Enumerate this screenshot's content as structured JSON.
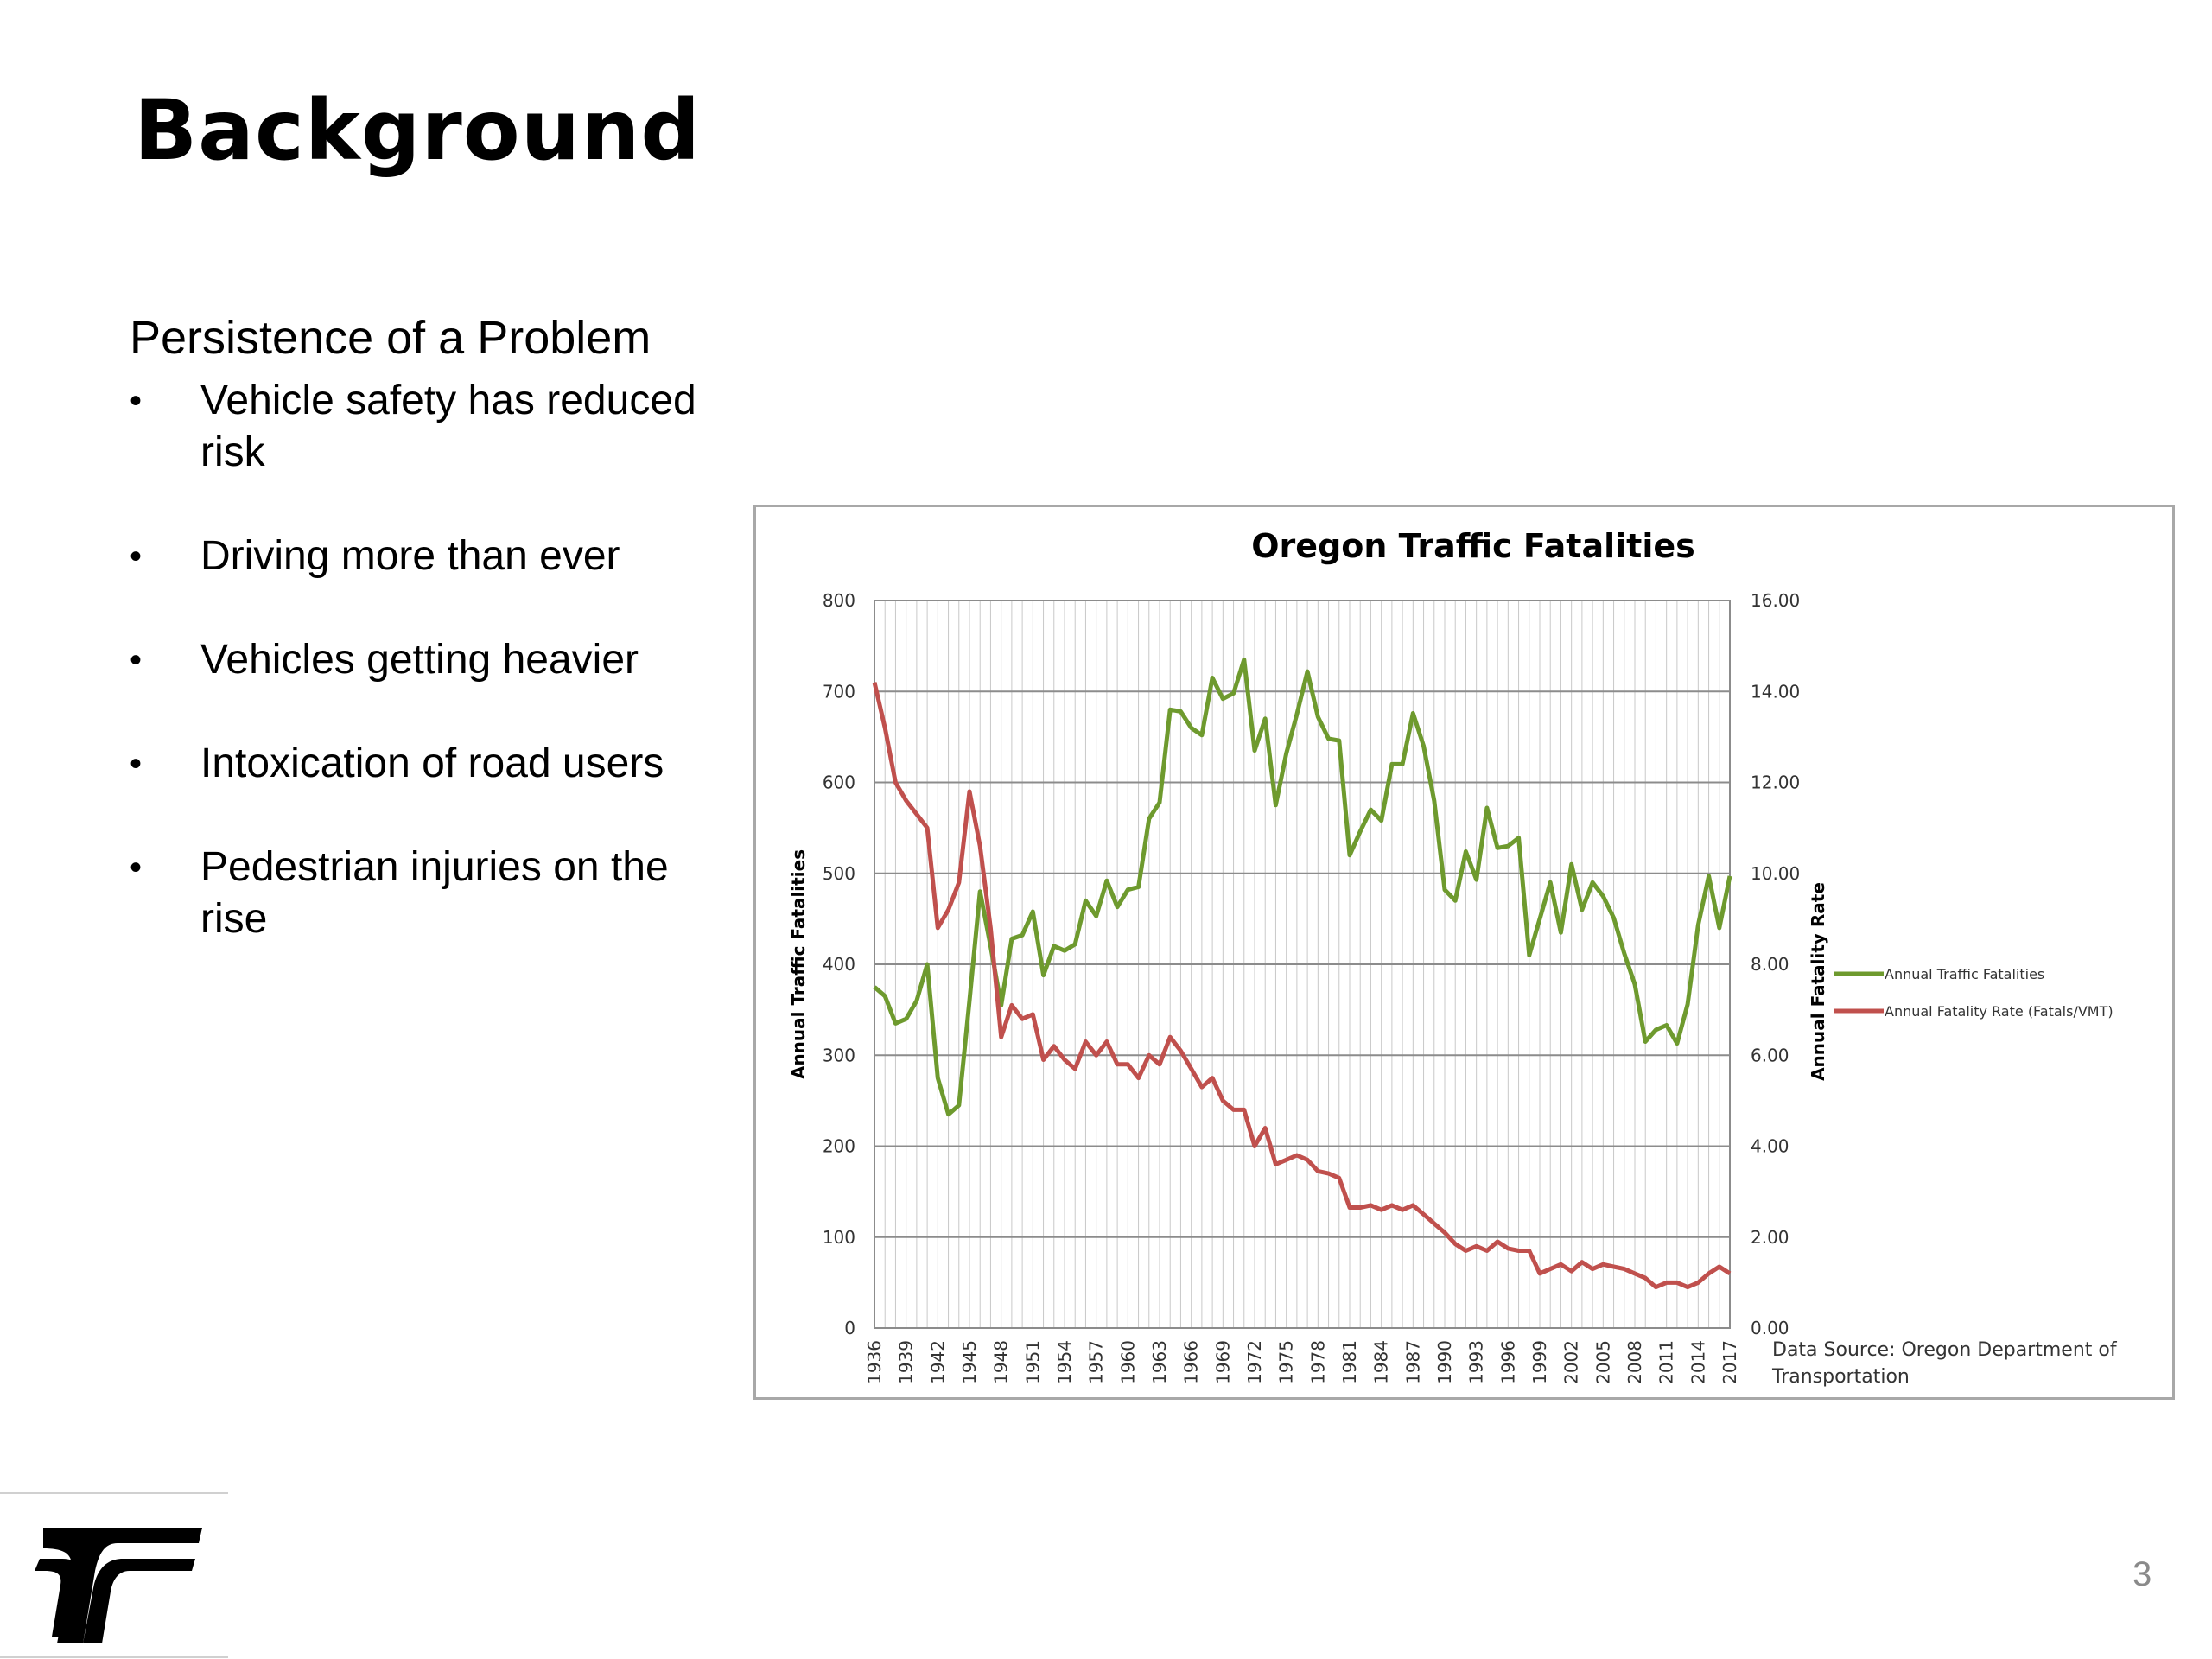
{
  "slide": {
    "title": "Background",
    "subtitle": "Persistence of a Problem",
    "bullets": [
      "Vehicle safety has reduced risk",
      "Driving more than ever",
      "Vehicles getting heavier",
      "Intoxication of road users",
      "Pedestrian injuries on the rise"
    ],
    "page_number": "3",
    "bullet_glyph": "•",
    "logo_icon": "odot-logo-icon"
  },
  "chart_data": {
    "type": "line",
    "title": "Oregon Traffic Fatalities",
    "ylabel": "Annual Traffic Fatalities",
    "y2label": "Annual Fatality Rate",
    "ylim": [
      0,
      800
    ],
    "y2lim": [
      0,
      16
    ],
    "y_ticks": [
      "0",
      "100",
      "200",
      "300",
      "400",
      "500",
      "600",
      "700",
      "800"
    ],
    "y2_ticks": [
      "0.00",
      "2.00",
      "4.00",
      "6.00",
      "8.00",
      "10.00",
      "12.00",
      "14.00",
      "16.00"
    ],
    "x_ticks": [
      "1936",
      "1939",
      "1942",
      "1945",
      "1948",
      "1951",
      "1954",
      "1957",
      "1960",
      "1963",
      "1966",
      "1969",
      "1972",
      "1975",
      "1978",
      "1981",
      "1984",
      "1987",
      "1990",
      "1993",
      "1996",
      "1999",
      "2002",
      "2005",
      "2008",
      "2011",
      "2014",
      "2017"
    ],
    "x": [
      1936,
      1937,
      1938,
      1939,
      1940,
      1941,
      1942,
      1943,
      1944,
      1945,
      1946,
      1947,
      1948,
      1949,
      1950,
      1951,
      1952,
      1953,
      1954,
      1955,
      1956,
      1957,
      1958,
      1959,
      1960,
      1961,
      1962,
      1963,
      1964,
      1965,
      1966,
      1967,
      1968,
      1969,
      1970,
      1971,
      1972,
      1973,
      1974,
      1975,
      1976,
      1977,
      1978,
      1979,
      1980,
      1981,
      1982,
      1983,
      1984,
      1985,
      1986,
      1987,
      1988,
      1989,
      1990,
      1991,
      1992,
      1993,
      1994,
      1995,
      1996,
      1997,
      1998,
      1999,
      2000,
      2001,
      2002,
      2003,
      2004,
      2005,
      2006,
      2007,
      2008,
      2009,
      2010,
      2011,
      2012,
      2013,
      2014,
      2015,
      2016,
      2017
    ],
    "grid": "vertical and horizontal",
    "legend_position": "right",
    "source_note": "Data Source: Oregon Department of Transportation",
    "series": [
      {
        "name": "Annual Traffic Fatalities",
        "axis": "left",
        "color": "#6e9a2e",
        "values": [
          375,
          365,
          335,
          340,
          360,
          400,
          275,
          235,
          245,
          360,
          480,
          420,
          355,
          428,
          432,
          458,
          388,
          420,
          415,
          422,
          470,
          453,
          492,
          463,
          482,
          485,
          560,
          578,
          680,
          678,
          660,
          652,
          715,
          692,
          698,
          735,
          635,
          670,
          575,
          632,
          675,
          722,
          672,
          648,
          646,
          520,
          546,
          570,
          558,
          620,
          620,
          676,
          640,
          580,
          482,
          470,
          524,
          493,
          572,
          528,
          530,
          539,
          410,
          450,
          490,
          435,
          510,
          460,
          490,
          475,
          451,
          412,
          378,
          315,
          328,
          333,
          313,
          356,
          443,
          497,
          440,
          497
        ],
        "value_range": [
          0,
          800
        ]
      },
      {
        "name": "Annual Fatality Rate (Fatals/VMT)",
        "axis": "right",
        "color": "#c0504d",
        "values": [
          14.2,
          13.2,
          12.0,
          11.6,
          11.3,
          11.0,
          8.8,
          9.2,
          9.8,
          11.8,
          10.6,
          8.8,
          6.4,
          7.1,
          6.8,
          6.9,
          5.9,
          6.2,
          5.9,
          5.7,
          6.3,
          6.0,
          6.3,
          5.8,
          5.8,
          5.5,
          6.0,
          5.8,
          6.4,
          6.1,
          5.7,
          5.3,
          5.5,
          5.0,
          4.8,
          4.8,
          4.0,
          4.4,
          3.6,
          3.7,
          3.8,
          3.7,
          3.45,
          3.4,
          3.3,
          2.65,
          2.65,
          2.7,
          2.6,
          2.7,
          2.6,
          2.7,
          2.5,
          2.3,
          2.1,
          1.85,
          1.7,
          1.8,
          1.7,
          1.9,
          1.75,
          1.7,
          1.7,
          1.2,
          1.3,
          1.4,
          1.25,
          1.45,
          1.3,
          1.4,
          1.35,
          1.3,
          1.2,
          1.1,
          0.9,
          1.0,
          1.0,
          0.9,
          1.0,
          1.2,
          1.35,
          1.2
        ],
        "value_range": [
          0,
          16
        ]
      }
    ]
  }
}
